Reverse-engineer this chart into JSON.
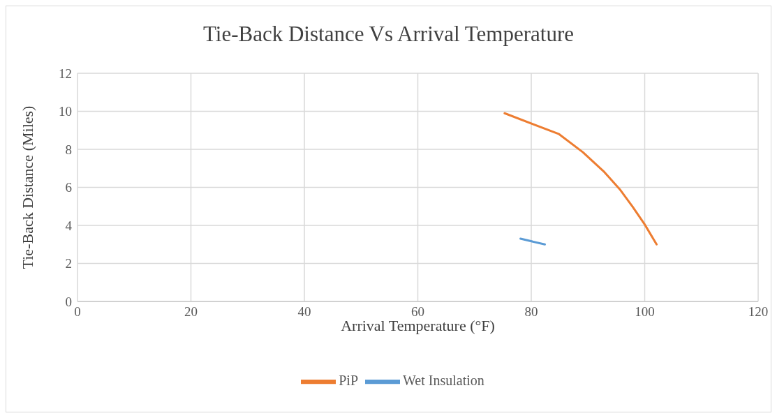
{
  "chart_data": {
    "type": "line",
    "title": "Tie-Back Distance Vs Arrival Temperature",
    "xlabel": "Arrival Temperature (°F)",
    "ylabel": "Tie-Back Distance (Miles)",
    "series": [
      {
        "name": "Wet Insulation",
        "color": "#5b9bd5",
        "x": [
          78.1,
          82.4
        ],
        "values": [
          3.3,
          3.0
        ]
      },
      {
        "name": "PiP",
        "color": "#ed7d31",
        "x": [
          75.3,
          84.9,
          89.1,
          92.9,
          95.6,
          97.9,
          100.0,
          102.1
        ],
        "values": [
          9.9,
          8.8,
          7.85,
          6.8,
          5.9,
          4.97,
          4.05,
          3.0
        ]
      }
    ],
    "xlim": [
      0,
      120
    ],
    "xticks": [
      0,
      20,
      40,
      60,
      80,
      100,
      120
    ],
    "ylim": [
      0,
      12
    ],
    "yticks": [
      0,
      2,
      4,
      6,
      8,
      10,
      12
    ],
    "grid": true,
    "legend": "bottom",
    "marker": "none",
    "line_style": "solid"
  }
}
